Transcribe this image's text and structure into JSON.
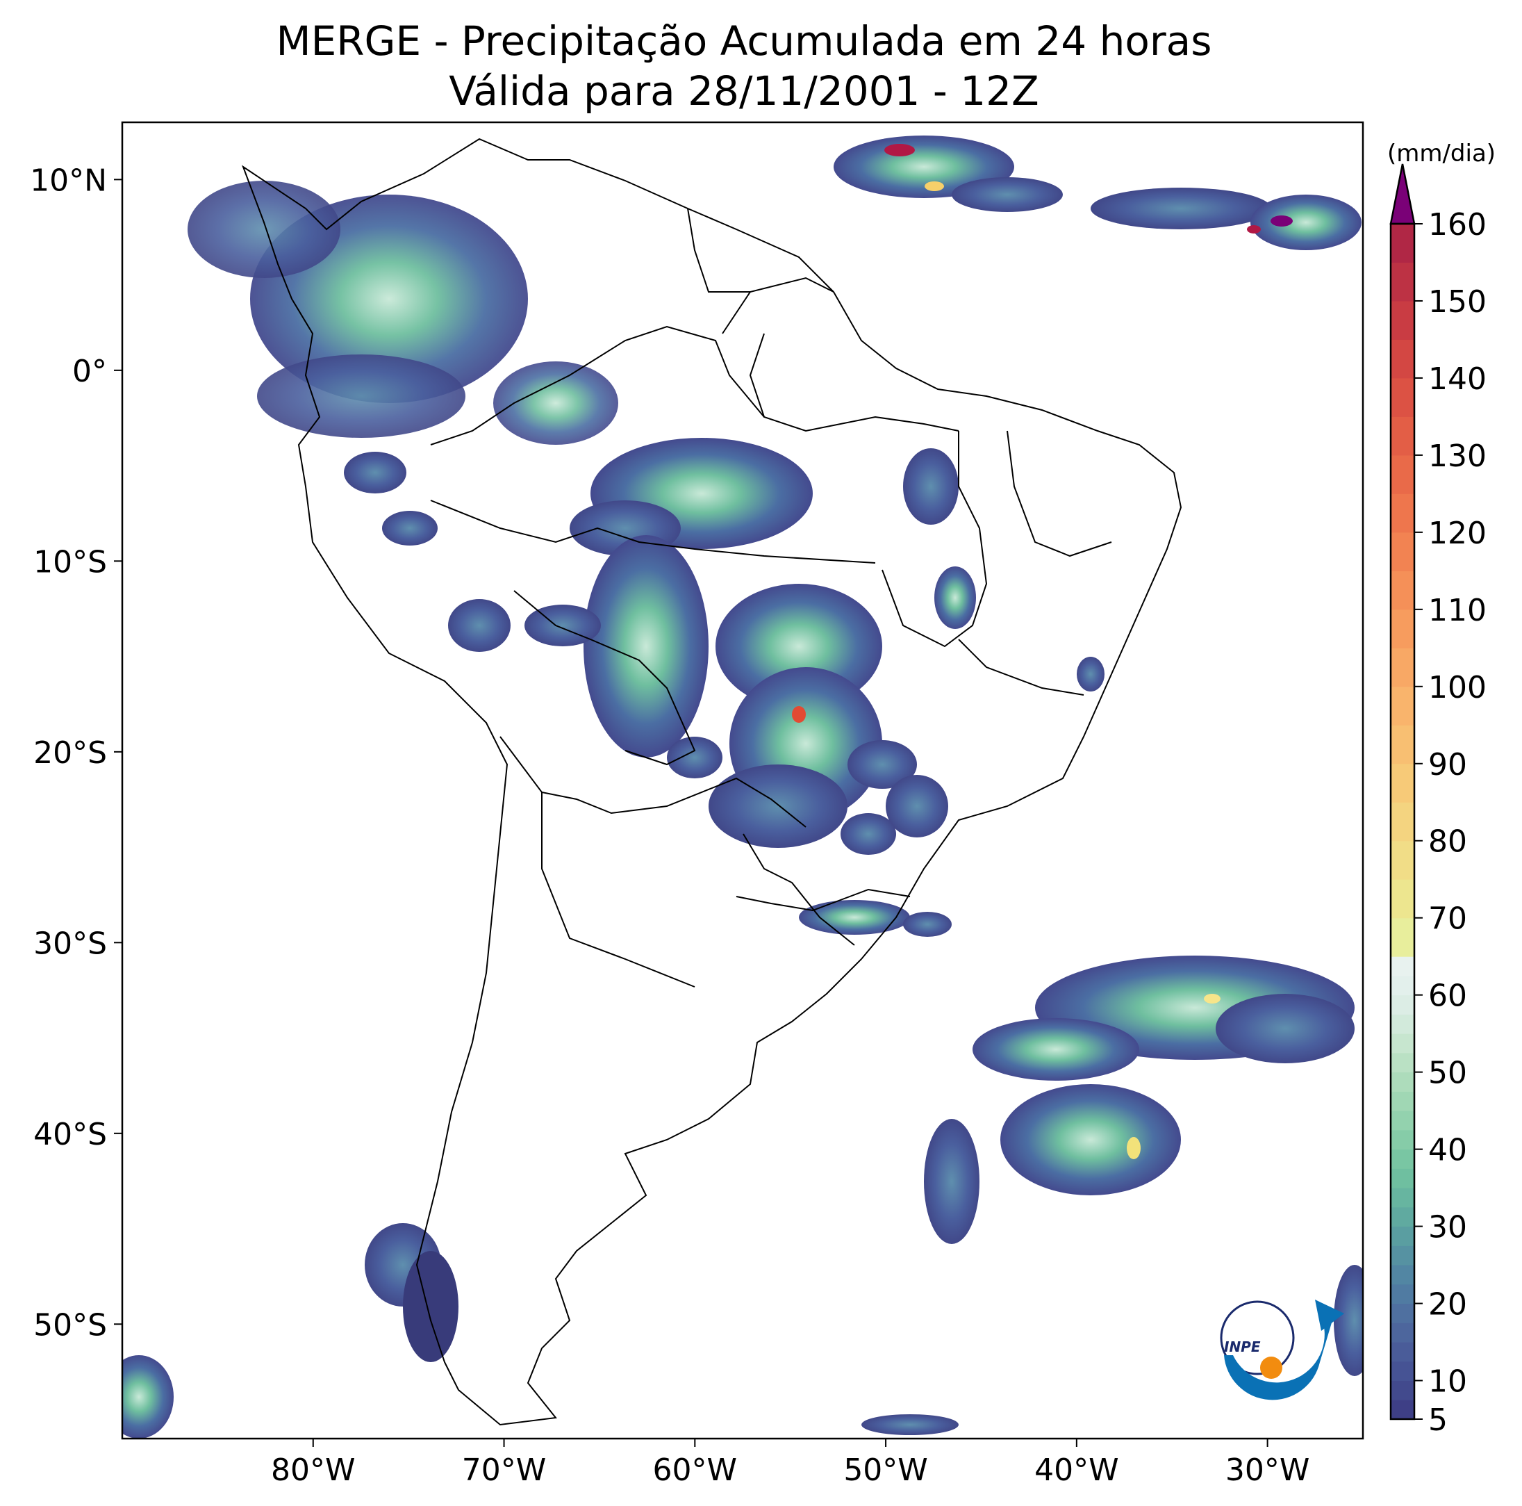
{
  "title": "MERGE - Precipitação Acumulada em 24 horas",
  "subtitle": "Válida para 28/11/2001 - 12Z",
  "map": {
    "lon_range": [
      -90,
      -25
    ],
    "lat_range": [
      -56,
      13
    ],
    "lon_ticks": [
      {
        "value": -80,
        "label": "80°W"
      },
      {
        "value": -70,
        "label": "70°W"
      },
      {
        "value": -60,
        "label": "60°W"
      },
      {
        "value": -50,
        "label": "50°W"
      },
      {
        "value": -40,
        "label": "40°W"
      },
      {
        "value": -30,
        "label": "30°W"
      }
    ],
    "lat_ticks": [
      {
        "value": 10,
        "label": "10°N"
      },
      {
        "value": 0,
        "label": "0°"
      },
      {
        "value": -10,
        "label": "10°S"
      },
      {
        "value": -20,
        "label": "20°S"
      },
      {
        "value": -30,
        "label": "30°S"
      },
      {
        "value": -40,
        "label": "40°S"
      },
      {
        "value": -50,
        "label": "50°S"
      }
    ]
  },
  "colorbar": {
    "unit": "(mm/dia)",
    "min": 5,
    "max": 160,
    "ticks": [
      {
        "value": 5,
        "label": "5"
      },
      {
        "value": 10,
        "label": "10"
      },
      {
        "value": 20,
        "label": "20"
      },
      {
        "value": 30,
        "label": "30"
      },
      {
        "value": 40,
        "label": "40"
      },
      {
        "value": 50,
        "label": "50"
      },
      {
        "value": 60,
        "label": "60"
      },
      {
        "value": 70,
        "label": "70"
      },
      {
        "value": 80,
        "label": "80"
      },
      {
        "value": 90,
        "label": "90"
      },
      {
        "value": 100,
        "label": "100"
      },
      {
        "value": 110,
        "label": "110"
      },
      {
        "value": 120,
        "label": "120"
      },
      {
        "value": 130,
        "label": "130"
      },
      {
        "value": 140,
        "label": "140"
      },
      {
        "value": 150,
        "label": "150"
      },
      {
        "value": 160,
        "label": "160"
      }
    ],
    "extend_color": "#7a0177"
  },
  "logo": {
    "text": "INPE"
  }
}
